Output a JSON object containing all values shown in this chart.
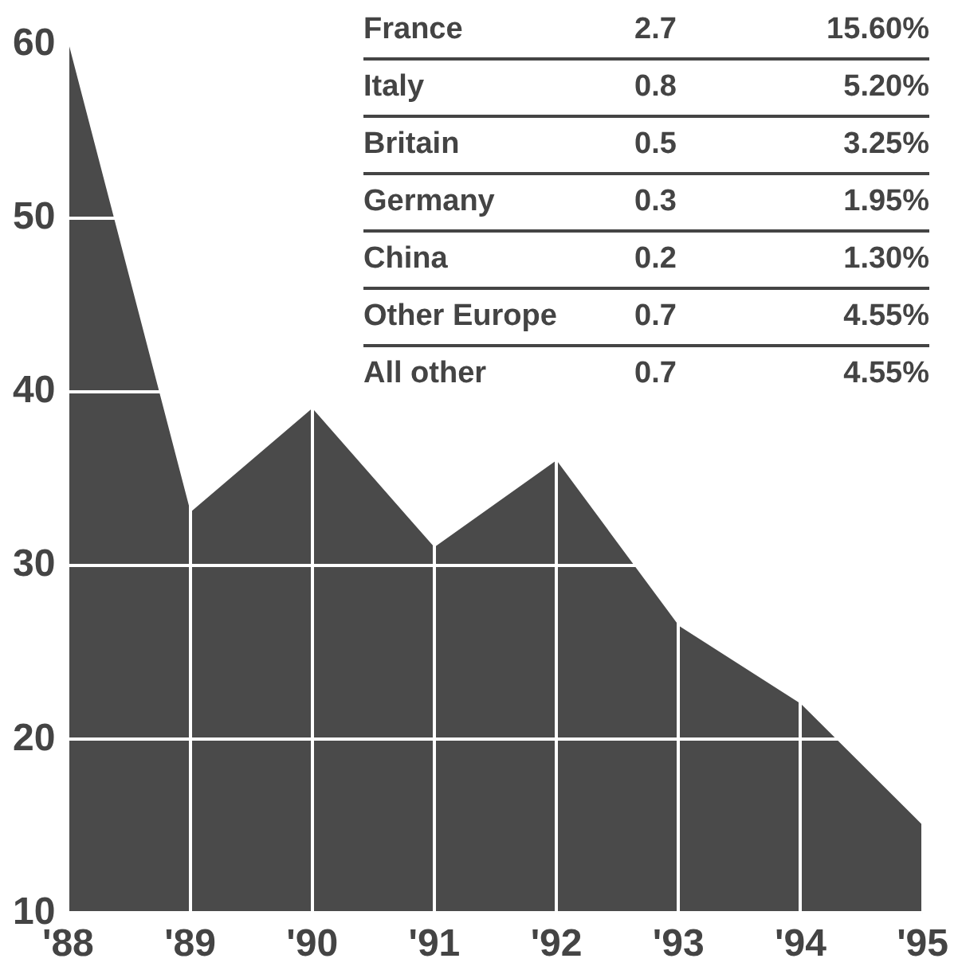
{
  "chart_data": {
    "type": "area",
    "categories": [
      "'88",
      "'89",
      "'90",
      "'91",
      "'92",
      "'93",
      "'94",
      "'95"
    ],
    "series": [
      {
        "color": "#4a4a4a",
        "values": [
          60,
          33,
          39,
          31,
          36,
          26.5,
          22,
          15
        ]
      }
    ],
    "ylim": [
      10,
      60
    ],
    "yticks": [
      10,
      20,
      30,
      40,
      50,
      60
    ],
    "grid": true,
    "legend": false,
    "annotations": [
      "France",
      "2.7",
      "15.60%",
      "Italy",
      "0.8",
      "5.20%",
      "Britain",
      "0.5",
      "3.25%",
      "Germany",
      "0.3",
      "1.95%",
      "China",
      "0.2",
      "1.30%",
      "Other Europe",
      "0.7",
      "4.55%",
      "All other",
      "0.7",
      "4.55%"
    ]
  }
}
